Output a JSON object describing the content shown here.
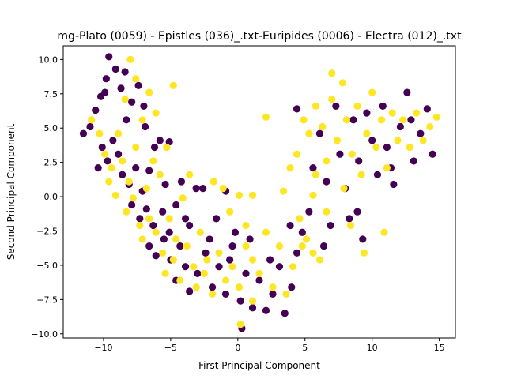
{
  "chart_data": {
    "type": "scatter",
    "title": "mg-Plato (0059) - Epistles (036)_.txt-Euripides (0006) - Electra (012)_.txt",
    "xlabel": "First Principal Component",
    "ylabel": "Second Principal Component",
    "xlim": [
      -13,
      16.2
    ],
    "ylim": [
      -10.3,
      11.0
    ],
    "xticks": [
      -10,
      -5,
      0,
      5,
      10,
      15
    ],
    "xtick_labels": [
      "−10",
      "−5",
      "0",
      "5",
      "10",
      "15"
    ],
    "yticks": [
      -10,
      -7.5,
      -5,
      -2.5,
      0,
      2.5,
      5,
      7.5,
      10
    ],
    "ytick_labels": [
      "−10.0",
      "−7.5",
      "−5.0",
      "−2.5",
      "0.0",
      "2.5",
      "5.0",
      "7.5",
      "10.0"
    ],
    "grid": false,
    "legend": "none",
    "colors": {
      "class_0": "#440154",
      "class_1": "#fde725"
    },
    "series": [
      {
        "color": "#440154",
        "points": [
          [
            -11.5,
            4.6
          ],
          [
            -11.0,
            5.1
          ],
          [
            -10.6,
            6.3
          ],
          [
            -10.2,
            7.3
          ],
          [
            -9.8,
            8.6
          ],
          [
            -9.6,
            10.2
          ],
          [
            -9.1,
            9.3
          ],
          [
            -8.7,
            7.9
          ],
          [
            -10.1,
            3.6
          ],
          [
            -9.7,
            2.6
          ],
          [
            -9.3,
            4.1
          ],
          [
            -8.9,
            3.1
          ],
          [
            -8.3,
            5.6
          ],
          [
            -7.9,
            6.9
          ],
          [
            -7.4,
            8.1
          ],
          [
            -7.0,
            6.6
          ],
          [
            -8.6,
            1.6
          ],
          [
            -8.1,
            0.9
          ],
          [
            -7.6,
            2.1
          ],
          [
            -7.1,
            0.4
          ],
          [
            -6.6,
            1.9
          ],
          [
            -6.2,
            3.6
          ],
          [
            -5.8,
            4.1
          ],
          [
            -5.1,
            4.0
          ],
          [
            -7.9,
            -0.6
          ],
          [
            -7.3,
            -1.6
          ],
          [
            -6.8,
            -0.9
          ],
          [
            -6.3,
            -2.1
          ],
          [
            -5.6,
            -1.1
          ],
          [
            -5.1,
            -2.6
          ],
          [
            -4.6,
            -0.6
          ],
          [
            -4.2,
            1.1
          ],
          [
            -6.6,
            -3.6
          ],
          [
            -6.1,
            -4.3
          ],
          [
            -5.5,
            -3.1
          ],
          [
            -5.0,
            -4.6
          ],
          [
            -4.3,
            -3.6
          ],
          [
            -3.9,
            -5.1
          ],
          [
            -3.6,
            -2.1
          ],
          [
            -3.1,
            0.6
          ],
          [
            -4.6,
            -6.1
          ],
          [
            -3.6,
            -6.9
          ],
          [
            -3.0,
            -5.6
          ],
          [
            -2.4,
            -4.1
          ],
          [
            -1.9,
            -6.6
          ],
          [
            -1.4,
            -5.1
          ],
          [
            -0.9,
            -7.1
          ],
          [
            -0.4,
            -3.6
          ],
          [
            -2.6,
            0.6
          ],
          [
            -1.6,
            -1.6
          ],
          [
            -0.9,
            0.4
          ],
          [
            -0.2,
            -2.6
          ],
          [
            0.2,
            -7.6
          ],
          [
            0.6,
            -5.6
          ],
          [
            1.1,
            -8.1
          ],
          [
            1.6,
            -6.1
          ],
          [
            2.1,
            -8.3
          ],
          [
            2.6,
            -7.1
          ],
          [
            3.1,
            -5.1
          ],
          [
            3.5,
            -8.5
          ],
          [
            4.0,
            -6.6
          ],
          [
            4.4,
            -4.1
          ],
          [
            4.8,
            -2.6
          ],
          [
            5.3,
            -1.1
          ],
          [
            4.4,
            6.4
          ],
          [
            5.6,
            2.1
          ],
          [
            6.1,
            4.6
          ],
          [
            6.6,
            1.1
          ],
          [
            6.9,
            -2.1
          ],
          [
            7.3,
            6.6
          ],
          [
            7.6,
            3.1
          ],
          [
            8.0,
            0.6
          ],
          [
            8.3,
            -1.6
          ],
          [
            8.6,
            5.6
          ],
          [
            9.0,
            2.6
          ],
          [
            9.3,
            -3.1
          ],
          [
            9.6,
            6.1
          ],
          [
            10.0,
            4.1
          ],
          [
            10.4,
            1.6
          ],
          [
            10.8,
            6.6
          ],
          [
            11.1,
            3.6
          ],
          [
            11.6,
            0.9
          ],
          [
            12.1,
            5.1
          ],
          [
            12.6,
            7.6
          ],
          [
            13.1,
            2.6
          ],
          [
            13.6,
            4.6
          ],
          [
            14.1,
            6.4
          ],
          [
            14.5,
            3.1
          ],
          [
            -9.9,
            7.6
          ],
          [
            -8.4,
            9.1
          ],
          [
            -6.9,
            5.1
          ],
          [
            -5.4,
            0.9
          ],
          [
            -3.9,
            -1.6
          ],
          [
            -2.1,
            -3.1
          ],
          [
            -0.6,
            -4.6
          ],
          [
            0.9,
            -3.1
          ],
          [
            2.4,
            -4.6
          ],
          [
            3.9,
            -2.1
          ],
          [
            6.4,
            -3.6
          ],
          [
            8.9,
            -1.1
          ],
          [
            11.4,
            2.1
          ],
          [
            12.9,
            5.6
          ],
          [
            -10.4,
            2.1
          ],
          [
            0.3,
            -9.6
          ]
        ]
      },
      {
        "color": "#fde725",
        "points": [
          [
            -10.9,
            5.6
          ],
          [
            -10.3,
            4.6
          ],
          [
            -9.9,
            3.1
          ],
          [
            -9.4,
            2.1
          ],
          [
            -8.9,
            4.6
          ],
          [
            -8.4,
            7.1
          ],
          [
            -8.0,
            10.0
          ],
          [
            -7.6,
            8.6
          ],
          [
            -9.6,
            1.1
          ],
          [
            -9.1,
            0.1
          ],
          [
            -8.6,
            2.6
          ],
          [
            -8.1,
            1.1
          ],
          [
            -7.6,
            3.6
          ],
          [
            -7.1,
            5.6
          ],
          [
            -6.6,
            7.6
          ],
          [
            -6.1,
            6.1
          ],
          [
            -8.3,
            -1.1
          ],
          [
            -7.8,
            -0.1
          ],
          [
            -7.3,
            -2.1
          ],
          [
            -6.8,
            0.6
          ],
          [
            -6.3,
            2.6
          ],
          [
            -5.8,
            1.6
          ],
          [
            -5.3,
            3.6
          ],
          [
            -4.8,
            8.1
          ],
          [
            -7.1,
            -3.1
          ],
          [
            -6.6,
            -1.6
          ],
          [
            -6.1,
            -2.6
          ],
          [
            -5.6,
            -4.1
          ],
          [
            -5.1,
            -1.6
          ],
          [
            -4.6,
            -3.1
          ],
          [
            -4.1,
            -0.1
          ],
          [
            -3.6,
            1.6
          ],
          [
            -5.4,
            -5.6
          ],
          [
            -4.8,
            -4.6
          ],
          [
            -4.3,
            -6.1
          ],
          [
            -3.8,
            -3.6
          ],
          [
            -3.3,
            -5.1
          ],
          [
            -2.8,
            -2.6
          ],
          [
            -2.3,
            -4.6
          ],
          [
            -1.8,
            1.1
          ],
          [
            -3.1,
            -6.6
          ],
          [
            -2.5,
            -5.6
          ],
          [
            -1.9,
            -7.1
          ],
          [
            -1.4,
            -4.1
          ],
          [
            -0.9,
            -6.1
          ],
          [
            -0.4,
            -5.1
          ],
          [
            0.1,
            -6.6
          ],
          [
            0.6,
            -3.6
          ],
          [
            -1.1,
            0.6
          ],
          [
            -0.6,
            -1.1
          ],
          [
            0.1,
            0.1
          ],
          [
            0.6,
            -2.1
          ],
          [
            1.1,
            -4.6
          ],
          [
            1.6,
            -5.6
          ],
          [
            2.1,
            -2.6
          ],
          [
            2.6,
            -6.6
          ],
          [
            0.2,
            -9.3
          ],
          [
            1.1,
            -7.6
          ],
          [
            3.1,
            -3.6
          ],
          [
            3.6,
            -7.1
          ],
          [
            4.1,
            -5.1
          ],
          [
            4.6,
            -1.6
          ],
          [
            5.1,
            -3.1
          ],
          [
            5.6,
            0.1
          ],
          [
            1.1,
            0.1
          ],
          [
            2.1,
            5.8
          ],
          [
            3.4,
            0.4
          ],
          [
            3.9,
            2.1
          ],
          [
            4.4,
            3.1
          ],
          [
            4.9,
            5.6
          ],
          [
            5.3,
            4.6
          ],
          [
            5.8,
            1.6
          ],
          [
            5.8,
            6.6
          ],
          [
            6.3,
            5.1
          ],
          [
            6.6,
            2.6
          ],
          [
            7.0,
            7.1
          ],
          [
            7.4,
            4.1
          ],
          [
            7.8,
            8.3
          ],
          [
            8.1,
            5.6
          ],
          [
            8.5,
            3.1
          ],
          [
            8.9,
            6.6
          ],
          [
            9.2,
            1.6
          ],
          [
            9.6,
            4.6
          ],
          [
            10.0,
            7.6
          ],
          [
            10.3,
            3.6
          ],
          [
            10.7,
            5.6
          ],
          [
            11.1,
            2.1
          ],
          [
            11.5,
            6.1
          ],
          [
            11.9,
            4.1
          ],
          [
            12.3,
            5.6
          ],
          [
            12.8,
            3.6
          ],
          [
            13.3,
            6.1
          ],
          [
            13.8,
            4.1
          ],
          [
            14.3,
            5.1
          ],
          [
            14.8,
            5.8
          ],
          [
            7.0,
            9.0
          ],
          [
            6.6,
            -1.1
          ],
          [
            5.6,
            -4.1
          ],
          [
            9.4,
            -4.1
          ],
          [
            8.4,
            -2.1
          ],
          [
            10.9,
            -2.6
          ],
          [
            4.8,
            -3.6
          ],
          [
            7.9,
            0.6
          ],
          [
            6.1,
            -4.6
          ]
        ]
      }
    ]
  }
}
